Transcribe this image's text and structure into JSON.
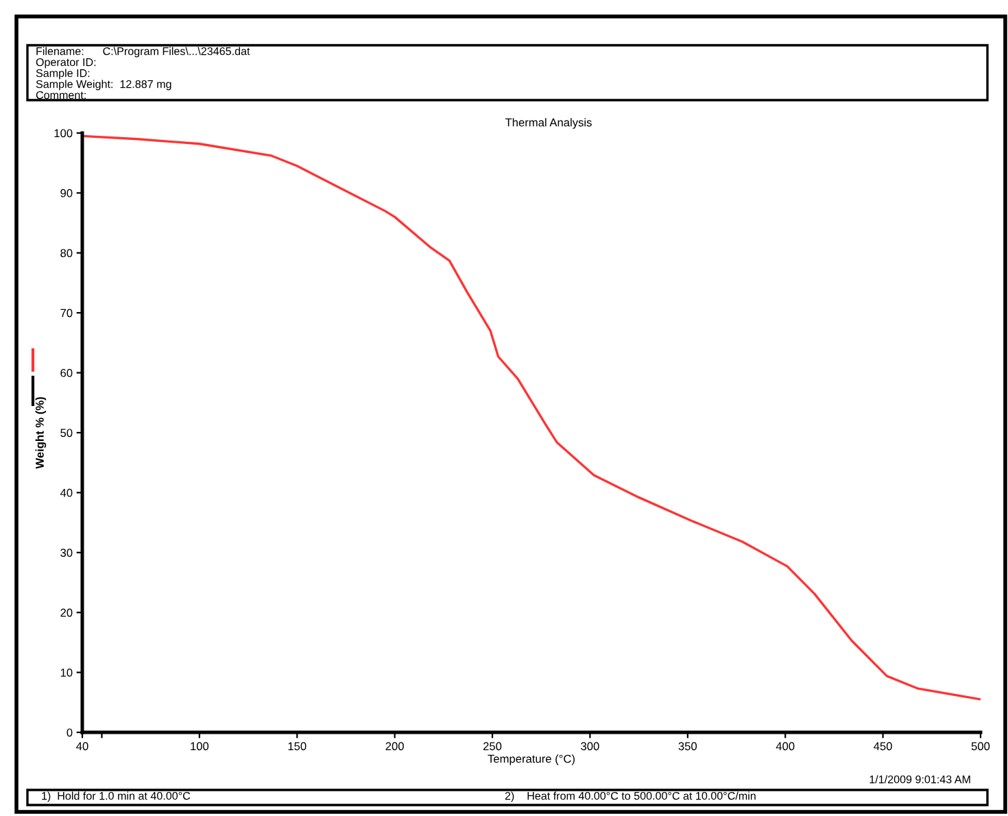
{
  "chart_data": {
    "type": "line",
    "title": "Thermal Analysis",
    "xlabel": "Temperature (°C)",
    "ylabel": "Weight % (%)",
    "x": [
      40,
      68,
      100,
      137,
      150,
      195,
      200,
      218,
      228,
      237,
      249,
      253,
      263,
      277,
      283,
      302,
      325,
      352,
      378,
      401,
      415,
      434,
      452,
      468,
      500
    ],
    "series": [
      {
        "color": "#ff3333",
        "values": [
          99.5,
          99.0,
          98.2,
          96.2,
          94.5,
          87.0,
          86.0,
          81.0,
          78.7,
          73.5,
          67.0,
          62.7,
          59.0,
          51.5,
          48.4,
          42.9,
          39.2,
          35.3,
          31.8,
          27.7,
          23.1,
          15.3,
          9.4,
          7.3,
          5.5
        ]
      }
    ],
    "xlim": [
      40,
      500
    ],
    "ylim": [
      0,
      100
    ],
    "xticks": [
      40,
      {
        "value": 50,
        "label": null
      },
      100,
      150,
      200,
      250,
      300,
      350,
      400,
      450,
      500
    ],
    "yticks": [
      0,
      10,
      20,
      30,
      40,
      50,
      60,
      70,
      80,
      90,
      100
    ],
    "grid": false,
    "legend": false,
    "marker": "none",
    "line_style": "solid",
    "annotations": [
      "Filename:      C:\\Program Files\\...\\23465.dat",
      "Operator ID:",
      "Sample ID:",
      "Sample Weight:  12.887 mg",
      "Comment:",
      "1/1/2009 9:01:43 AM",
      "1)  Hold for 1.0 min at 40.00°C",
      "2)    Heat from 40.00°C to 500.00°C at 10.00°C/min"
    ]
  }
}
